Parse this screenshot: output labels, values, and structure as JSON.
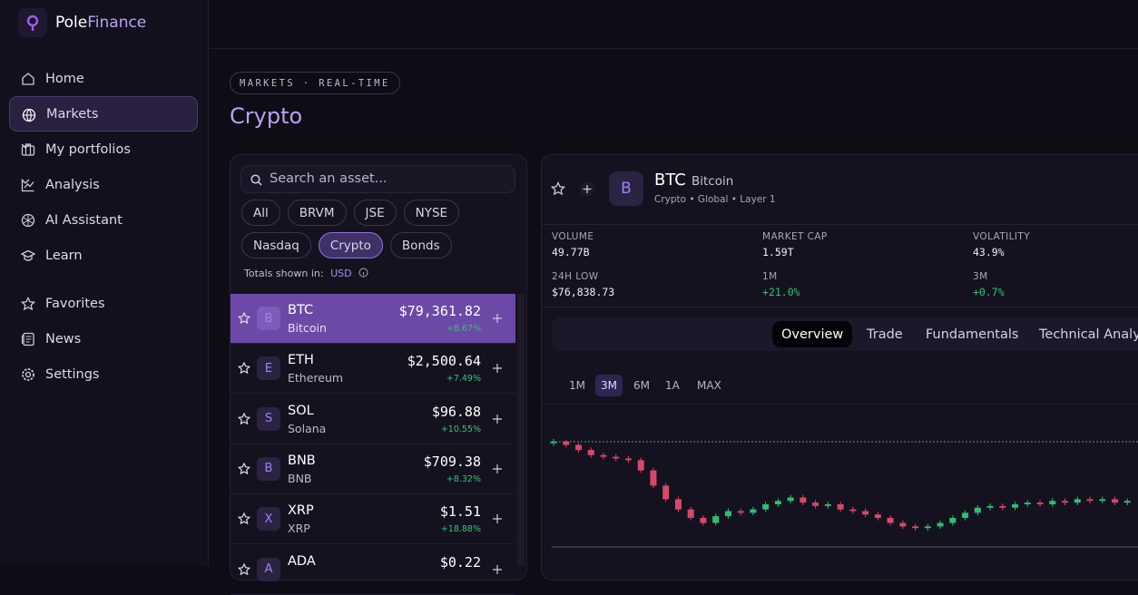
{
  "brand": {
    "pole": "Pole",
    "finance": "Finance"
  },
  "nav": [
    "Home",
    "Markets",
    "My portfolios",
    "Analysis",
    "AI Assistant",
    "Learn"
  ],
  "nav2": [
    "Favorites",
    "News",
    "Settings"
  ],
  "active_nav": 1,
  "eyebrow": "MARKETS · REAL-TIME",
  "title": "Crypto",
  "search_placeholder": "Search an asset...",
  "filters": [
    "All",
    "BRVM",
    "JSE",
    "NYSE",
    "Nasdaq",
    "Crypto",
    "Bonds"
  ],
  "active_filter": 5,
  "totals_label": "Totals shown in:",
  "currency": "USD",
  "assets": [
    {
      "icon": "B",
      "symbol": "BTC",
      "name": "Bitcoin",
      "price": "$79,361.82",
      "change": "+8.67%"
    },
    {
      "icon": "E",
      "symbol": "ETH",
      "name": "Ethereum",
      "price": "$2,500.64",
      "change": "+7.49%"
    },
    {
      "icon": "S",
      "symbol": "SOL",
      "name": "Solana",
      "price": "$96.88",
      "change": "+10.55%"
    },
    {
      "icon": "B",
      "symbol": "BNB",
      "name": "BNB",
      "price": "$709.38",
      "change": "+8.32%"
    },
    {
      "icon": "X",
      "symbol": "XRP",
      "name": "XRP",
      "price": "$1.51",
      "change": "+18.88%"
    },
    {
      "icon": "A",
      "symbol": "ADA",
      "price": "$0.22"
    }
  ],
  "active_asset": 0,
  "detail": {
    "icon": "B",
    "symbol": "BTC",
    "name": "Bitcoin",
    "tags": "Crypto • Global • Layer 1",
    "stats": [
      {
        "label": "VOLUME",
        "value": "49.77B"
      },
      {
        "label": "MARKET CAP",
        "value": "1.59T"
      },
      {
        "label": "VOLATILITY",
        "value": "43.9%"
      },
      {
        "label": "24H LOW",
        "value": "$76,838.73"
      },
      {
        "label": "1M",
        "value": "+21.0%",
        "up": true
      },
      {
        "label": "3M",
        "value": "+0.7%",
        "up": true
      }
    ],
    "tabs": [
      "Overview",
      "Trade",
      "Fundamentals",
      "Technical Analysis"
    ],
    "active_tab": 0,
    "ranges": [
      "1M",
      "3M",
      "6M",
      "1A",
      "MAX"
    ],
    "active_range": 1,
    "chart": {
      "type": "candlestick",
      "up_color": "#2fbf71",
      "down_color": "#d9486a",
      "candles": [
        [
          79200,
          79450,
          79050,
          79300
        ],
        [
          79300,
          79400,
          78950,
          79100
        ],
        [
          79100,
          79200,
          78650,
          78800
        ],
        [
          78800,
          78950,
          78350,
          78500
        ],
        [
          78500,
          78650,
          78250,
          78400
        ],
        [
          78400,
          78550,
          78150,
          78300
        ],
        [
          78300,
          78450,
          78050,
          78200
        ],
        [
          78200,
          78350,
          77450,
          77600
        ],
        [
          77600,
          77750,
          76550,
          76700
        ],
        [
          76700,
          76850,
          75750,
          75900
        ],
        [
          75900,
          76050,
          75150,
          75300
        ],
        [
          75300,
          75450,
          74650,
          74800
        ],
        [
          74800,
          74950,
          74350,
          74500
        ],
        [
          74500,
          75050,
          74350,
          74900
        ],
        [
          74900,
          75350,
          74750,
          75200
        ],
        [
          75200,
          75350,
          74950,
          75100
        ],
        [
          75100,
          75450,
          74950,
          75300
        ],
        [
          75300,
          75750,
          75150,
          75600
        ],
        [
          75600,
          75950,
          75450,
          75800
        ],
        [
          75800,
          76150,
          75650,
          76000
        ],
        [
          76000,
          76150,
          75550,
          75700
        ],
        [
          75700,
          75850,
          75350,
          75500
        ],
        [
          75500,
          75750,
          75350,
          75600
        ],
        [
          75600,
          75750,
          75150,
          75300
        ],
        [
          75300,
          75450,
          75050,
          75200
        ],
        [
          75200,
          75350,
          74850,
          75000
        ],
        [
          75000,
          75150,
          74650,
          74800
        ],
        [
          74800,
          74950,
          74350,
          74500
        ],
        [
          74500,
          74650,
          74150,
          74300
        ],
        [
          74300,
          74450,
          74050,
          74200
        ],
        [
          74200,
          74450,
          74050,
          74300
        ],
        [
          74300,
          74650,
          74150,
          74500
        ],
        [
          74500,
          74950,
          74350,
          74800
        ],
        [
          74800,
          75250,
          74650,
          75100
        ],
        [
          75100,
          75550,
          74950,
          75400
        ],
        [
          75400,
          75650,
          75250,
          75500
        ],
        [
          75500,
          75650,
          75250,
          75400
        ],
        [
          75400,
          75750,
          75250,
          75600
        ],
        [
          75600,
          75850,
          75450,
          75700
        ],
        [
          75700,
          75850,
          75450,
          75600
        ],
        [
          75600,
          75950,
          75450,
          75800
        ],
        [
          75800,
          75950,
          75550,
          75700
        ],
        [
          75700,
          76050,
          75550,
          75900
        ],
        [
          75900,
          76050,
          75650,
          75800
        ],
        [
          75800,
          76050,
          75650,
          75900
        ],
        [
          75900,
          76050,
          75550,
          75700
        ],
        [
          75700,
          75950,
          75550,
          75800
        ]
      ]
    }
  }
}
